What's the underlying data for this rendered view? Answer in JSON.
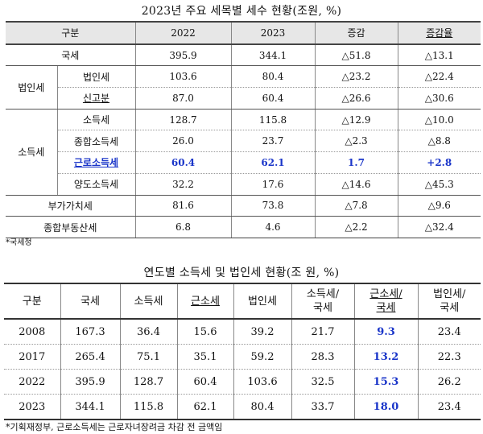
{
  "table1": {
    "title": "2023년 주요 세목별 세수 현황(조원, %)",
    "headers": [
      "구분",
      "2022",
      "2023",
      "증감",
      "증감율"
    ],
    "rows": [
      {
        "group": "",
        "label": "국세",
        "v2022": "395.9",
        "v2023": "344.1",
        "change": "△51.8",
        "rate": "△13.1"
      },
      {
        "group": "법인세",
        "label": "법인세",
        "v2022": "103.6",
        "v2023": "80.4",
        "change": "△23.2",
        "rate": "△22.4"
      },
      {
        "group": "",
        "label": "신고분",
        "v2022": "87.0",
        "v2023": "60.4",
        "change": "△26.6",
        "rate": "△30.6"
      },
      {
        "group": "소득세",
        "label": "소득세",
        "v2022": "128.7",
        "v2023": "115.8",
        "change": "△12.9",
        "rate": "△10.0"
      },
      {
        "group": "",
        "label": "종합소득세",
        "v2022": "26.0",
        "v2023": "23.7",
        "change": "△2.3",
        "rate": "△8.8"
      },
      {
        "group": "",
        "label": "근로소득세",
        "v2022": "60.4",
        "v2023": "62.1",
        "change": "1.7",
        "rate": "+2.8"
      },
      {
        "group": "",
        "label": "양도소득세",
        "v2022": "32.2",
        "v2023": "17.6",
        "change": "△14.6",
        "rate": "△45.3"
      },
      {
        "group": "",
        "label": "부가가치세",
        "v2022": "81.6",
        "v2023": "73.8",
        "change": "△7.8",
        "rate": "△9.6"
      },
      {
        "group": "",
        "label": "종합부동산세",
        "v2022": "6.8",
        "v2023": "4.6",
        "change": "△2.2",
        "rate": "△32.4"
      }
    ],
    "note": "*국세청"
  },
  "table2": {
    "title": "연도별 소득세 및 법인세 현황(조 원, %)",
    "headers": [
      "구분",
      "국세",
      "소득세",
      "근소세",
      "법인세",
      "소득세/\n국세",
      "근소세/\n국세",
      "법인세/\n국세"
    ],
    "rows": [
      {
        "year": "2008",
        "national": "167.3",
        "income": "36.4",
        "earned": "15.6",
        "corporate": "39.2",
        "income_ratio": "21.7",
        "earned_ratio": "9.3",
        "corp_ratio": "23.4"
      },
      {
        "year": "2017",
        "national": "265.4",
        "income": "75.1",
        "earned": "35.1",
        "corporate": "59.2",
        "income_ratio": "28.3",
        "earned_ratio": "13.2",
        "corp_ratio": "22.3"
      },
      {
        "year": "2022",
        "national": "395.9",
        "income": "128.7",
        "earned": "60.4",
        "corporate": "103.6",
        "income_ratio": "32.5",
        "earned_ratio": "15.3",
        "corp_ratio": "26.2"
      },
      {
        "year": "2023",
        "national": "344.1",
        "income": "115.8",
        "earned": "62.1",
        "corporate": "80.4",
        "income_ratio": "33.7",
        "earned_ratio": "18.0",
        "corp_ratio": "23.4"
      }
    ],
    "note": "*기획재정부, 근로소득세는 근로자녀장려금 차감 전 금액임"
  },
  "colors": {
    "highlight": "#1a35c9",
    "header_bg": "#e7e7e7"
  }
}
